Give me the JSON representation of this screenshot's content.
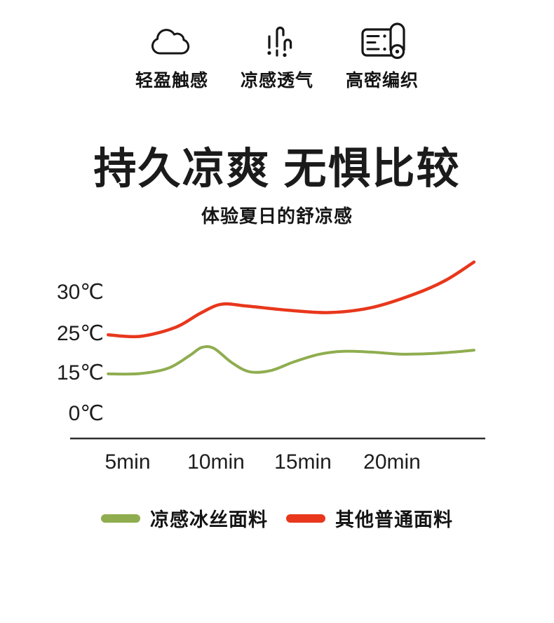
{
  "features": {
    "items": [
      {
        "icon": "cloud-icon",
        "label": "轻盈触感"
      },
      {
        "icon": "steam-icon",
        "label": "凉感透气"
      },
      {
        "icon": "fabric-roll-icon",
        "label": "高密编织"
      }
    ]
  },
  "title": "持久凉爽 无惧比较",
  "subtitle": "体验夏日的舒凉感",
  "chart_data": {
    "type": "line",
    "title": "",
    "xlabel": "",
    "ylabel": "",
    "grid": false,
    "legend_position": "bottom",
    "x_tick_labels": [
      "5min",
      "10min",
      "15min",
      "20min"
    ],
    "x_tick_values": [
      5,
      10,
      15,
      20
    ],
    "y_tick_labels": [
      "30℃",
      "25℃",
      "15℃",
      "0℃"
    ],
    "y_tick_values": [
      30,
      25,
      15,
      0
    ],
    "x_range_min": [
      3.9,
      24.6
    ],
    "series": [
      {
        "name": "凉感冰丝面料",
        "color": "#8fad4f",
        "stroke_width": 4.0,
        "points": [
          [
            3.9,
            14.5
          ],
          [
            5.7,
            14.6
          ],
          [
            7.3,
            16.1
          ],
          [
            8.5,
            19.3
          ],
          [
            9.2,
            21.4
          ],
          [
            9.9,
            21.1
          ],
          [
            10.9,
            17.5
          ],
          [
            11.9,
            15.2
          ],
          [
            13.1,
            15.5
          ],
          [
            14.4,
            17.7
          ],
          [
            15.8,
            19.6
          ],
          [
            17.2,
            20.4
          ],
          [
            18.8,
            20.2
          ],
          [
            20.4,
            19.7
          ],
          [
            22.0,
            19.8
          ],
          [
            23.4,
            20.2
          ],
          [
            24.6,
            20.7
          ]
        ]
      },
      {
        "name": "其他普通面料",
        "color": "#e8371c",
        "stroke_width": 4.5,
        "points": [
          [
            3.9,
            24.6
          ],
          [
            5.7,
            24.2
          ],
          [
            7.7,
            25.7
          ],
          [
            9.1,
            27.4
          ],
          [
            10.3,
            28.5
          ],
          [
            11.7,
            28.3
          ],
          [
            14.0,
            27.8
          ],
          [
            16.4,
            27.5
          ],
          [
            18.8,
            28.1
          ],
          [
            21.2,
            29.7
          ],
          [
            23.0,
            31.4
          ],
          [
            24.6,
            33.6
          ]
        ]
      }
    ]
  },
  "colors": {
    "accent_green": "#8fad4f",
    "accent_red": "#e8371c",
    "text": "#1a1a1a",
    "axis": "#2e2e2e",
    "background": "#ffffff"
  }
}
